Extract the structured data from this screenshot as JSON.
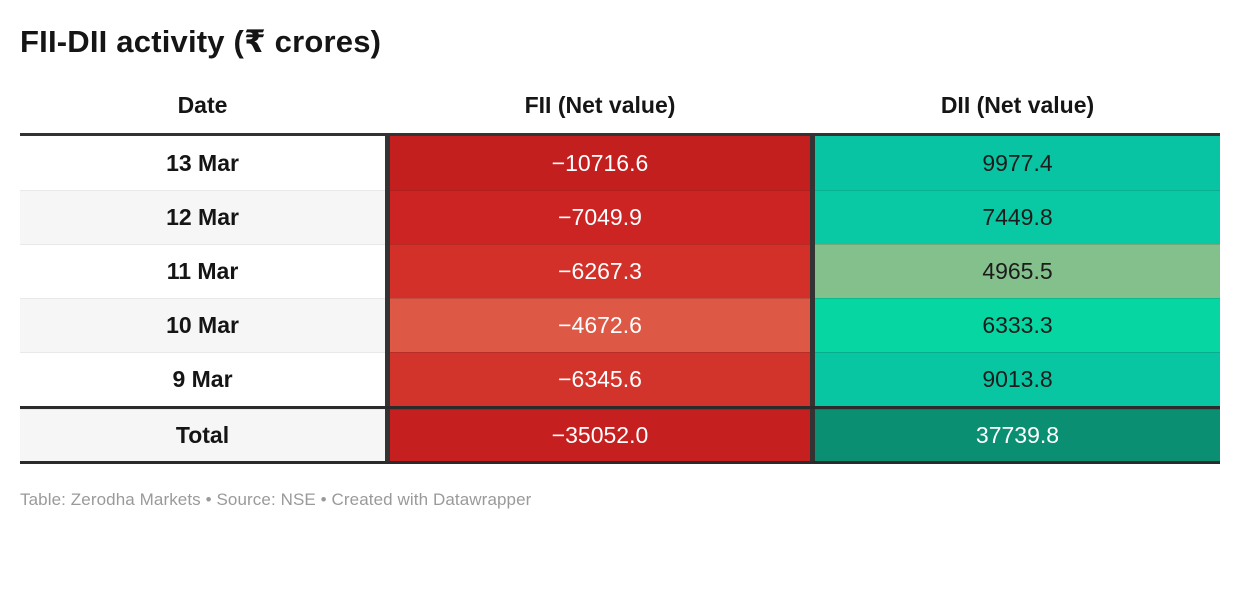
{
  "title": "FII-DII activity (₹ crores)",
  "footer": "Table: Zerodha Markets • Source: NSE • Created with Datawrapper",
  "colors": {
    "header_border": "#333333",
    "column_separator": "#333333",
    "row_stripe": "#f6f6f6",
    "footer_text": "#9a9a9a",
    "negative_base_red": "#c41f1f",
    "positive_base_teal": "#09c4a2"
  },
  "chart_data": {
    "type": "table",
    "title": "FII-DII activity (₹ crores)",
    "columns": [
      "Date",
      "FII (Net value)",
      "DII (Net value)"
    ],
    "rows": [
      {
        "date": "13 Mar",
        "fii": "−10716.6",
        "dii": "9977.4",
        "fii_value": -10716.6,
        "dii_value": 9977.4,
        "fii_bg": "#c41f1f",
        "dii_bg": "#09c4a2",
        "fii_text": "#ffffff",
        "dii_text": "#1c1c1c"
      },
      {
        "date": "12 Mar",
        "fii": "−7049.9",
        "dii": "7449.8",
        "fii_value": -7049.9,
        "dii_value": 7449.8,
        "fii_bg": "#cb2423",
        "dii_bg": "#08c9a4",
        "fii_text": "#ffffff",
        "dii_text": "#1c1c1c"
      },
      {
        "date": "11 Mar",
        "fii": "−6267.3",
        "dii": "4965.5",
        "fii_value": -6267.3,
        "dii_value": 4965.5,
        "fii_bg": "#d23029",
        "dii_bg": "#84c08b",
        "fii_text": "#ffffff",
        "dii_text": "#1c1c1c"
      },
      {
        "date": "10 Mar",
        "fii": "−4672.6",
        "dii": "6333.3",
        "fii_value": -4672.6,
        "dii_value": 6333.3,
        "fii_bg": "#de5846",
        "dii_bg": "#06d6a2",
        "fii_text": "#ffffff",
        "dii_text": "#1c1c1c"
      },
      {
        "date": "9 Mar",
        "fii": "−6345.6",
        "dii": "9013.8",
        "fii_value": -6345.6,
        "dii_value": 9013.8,
        "fii_bg": "#d2342c",
        "dii_bg": "#09c6a2",
        "fii_text": "#ffffff",
        "dii_text": "#1c1c1c"
      }
    ],
    "total": {
      "date": "Total",
      "fii": "−35052.0",
      "dii": "37739.8",
      "fii_value": -35052.0,
      "dii_value": 37739.8,
      "fii_bg": "#c51f1f",
      "dii_bg": "#0a8f73",
      "fii_text": "#ffffff",
      "dii_text": "#ffffff"
    }
  }
}
